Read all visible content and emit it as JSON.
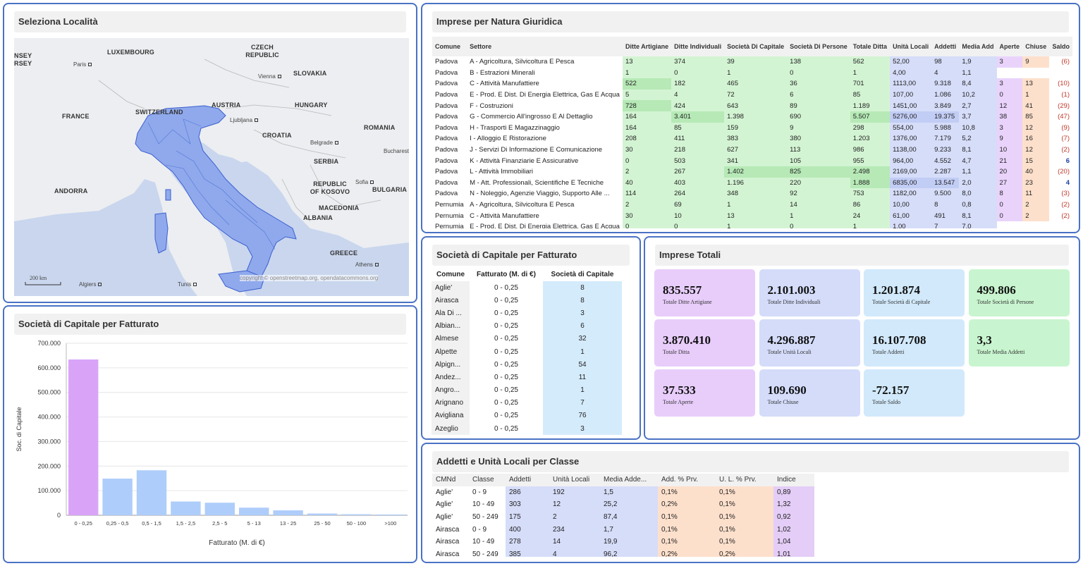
{
  "map_panel": {
    "title": "Seleziona Località",
    "labels": {
      "countries": [
        "LUXEMBOURG",
        "CZECH REPUBLIC",
        "SLOVAKIA",
        "AUSTRIA",
        "HUNGARY",
        "FRANCE",
        "SWITZERLAND",
        "ROMANIA",
        "CROATIA",
        "SERBIA",
        "ANDORRA",
        "REPUBLIC OF KOSOVO",
        "BULGARIA",
        "MACEDONIA",
        "ALBANIA",
        "GREECE",
        "NSEY",
        "RSEY"
      ],
      "cities": [
        "Paris",
        "Vienna",
        "Ljubljana",
        "Belgrade",
        "Bucharest",
        "Sofia",
        "Athens",
        "Algiers",
        "Tunis"
      ],
      "scale": "200 km",
      "copyright": "copyright © openstreetmap.org, opendatacommons.org"
    }
  },
  "natura_panel": {
    "title": "Imprese per Natura Giuridica",
    "headers": [
      "Comune",
      "Settore",
      "Ditte Artigiane",
      "Ditte Individuali",
      "Società Di Capitale",
      "Società Di Persone",
      "Totale Ditta",
      "Unità Locali",
      "Addetti",
      "Media Add",
      "Aperte",
      "Chiuse",
      "Saldo"
    ],
    "rows": [
      [
        "Padova",
        "A - Agricoltura, Silvicoltura E Pesca",
        "13",
        "374",
        "39",
        "138",
        "562",
        "52,00",
        "98",
        "1,9",
        "3",
        "9",
        "(6)"
      ],
      [
        "Padova",
        "B - Estrazioni Minerali",
        "1",
        "0",
        "1",
        "0",
        "1",
        "4,00",
        "4",
        "1,1",
        "",
        "",
        ""
      ],
      [
        "Padova",
        "C - Attività Manufattiere",
        "522",
        "182",
        "465",
        "36",
        "701",
        "1113,00",
        "9.318",
        "8,4",
        "3",
        "13",
        "(10)"
      ],
      [
        "Padova",
        "E - Prod. E Dist. Di Energia Elettrica, Gas E Acqua",
        "5",
        "4",
        "72",
        "6",
        "85",
        "107,00",
        "1.086",
        "10,2",
        "0",
        "1",
        "(1)"
      ],
      [
        "Padova",
        "F - Costruzioni",
        "728",
        "424",
        "643",
        "89",
        "1.189",
        "1451,00",
        "3.849",
        "2,7",
        "12",
        "41",
        "(29)"
      ],
      [
        "Padova",
        "G - Commercio All'ingrosso E Al Dettaglio",
        "164",
        "3.401",
        "1.398",
        "690",
        "5.507",
        "5276,00",
        "19.375",
        "3,7",
        "38",
        "85",
        "(47)"
      ],
      [
        "Padova",
        "H - Trasporti E Magazzinaggio",
        "164",
        "85",
        "159",
        "9",
        "298",
        "554,00",
        "5.988",
        "10,8",
        "3",
        "12",
        "(9)"
      ],
      [
        "Padova",
        "I - Alloggio E Ristorazione",
        "208",
        "411",
        "383",
        "380",
        "1.203",
        "1376,00",
        "7.179",
        "5,2",
        "9",
        "16",
        "(7)"
      ],
      [
        "Padova",
        "J - Servizi Di Informazione E Comunicazione",
        "30",
        "218",
        "627",
        "113",
        "986",
        "1138,00",
        "9.233",
        "8,1",
        "10",
        "12",
        "(2)"
      ],
      [
        "Padova",
        "K - Attività Finanziarie E Assicurative",
        "0",
        "503",
        "341",
        "105",
        "955",
        "964,00",
        "4.552",
        "4,7",
        "21",
        "15",
        "6"
      ],
      [
        "Padova",
        "L - Attività Immobiliari",
        "2",
        "267",
        "1.402",
        "825",
        "2.498",
        "2169,00",
        "2.287",
        "1,1",
        "20",
        "40",
        "(20)"
      ],
      [
        "Padova",
        "M - Att. Professionali, Scientifiche E Tecniche",
        "40",
        "403",
        "1.196",
        "220",
        "1.888",
        "6835,00",
        "13.547",
        "2,0",
        "27",
        "23",
        "4"
      ],
      [
        "Padova",
        "N - Noleggio, Agenzie Viaggio, Supporto Alle ...",
        "114",
        "264",
        "348",
        "92",
        "753",
        "1182,00",
        "9.500",
        "8,0",
        "8",
        "11",
        "(3)"
      ],
      [
        "Pernumia",
        "A - Agricoltura, Silvicoltura E Pesca",
        "2",
        "69",
        "1",
        "14",
        "86",
        "10,00",
        "8",
        "0,8",
        "0",
        "2",
        "(2)"
      ],
      [
        "Pernumia",
        "C - Attività Manufattiere",
        "30",
        "10",
        "13",
        "1",
        "24",
        "61,00",
        "491",
        "8,1",
        "0",
        "2",
        "(2)"
      ],
      [
        "Pernumia",
        "E - Prod. E Dist. Di Energia Elettrica, Gas E Acqua",
        "0",
        "0",
        "1",
        "0",
        "1",
        "1,00",
        "7",
        "7,0",
        "",
        "",
        ""
      ]
    ]
  },
  "bar_panel": {
    "title": "Società di Capitale per Fatturato",
    "chart_data": {
      "type": "bar",
      "categories": [
        "0 - 0,25",
        "0,25 - 0,5",
        "0,5 - 1,5",
        "1,5 - 2,5",
        "2,5 - 5",
        "5 - 13",
        "13 - 25",
        "25 - 50",
        "50 - 100",
        ">100"
      ],
      "values": [
        634000,
        149000,
        183000,
        56000,
        51000,
        31000,
        20000,
        7000,
        4000,
        3000
      ],
      "xlabel": "Fatturato (M. di €)",
      "ylabel": "Soc. di Capitale",
      "ylim": [
        0,
        700000
      ],
      "yticks": [
        "0",
        "100.000",
        "200.000",
        "300.000",
        "400.000",
        "500.000",
        "600.000",
        "700.000"
      ],
      "colors": [
        "#d9a4f7",
        "#aecdfa"
      ]
    }
  },
  "fatturato_panel": {
    "title": "Società di Capitale per Fatturato",
    "headers": [
      "Comune",
      "Fatturato (M. di €)",
      "Società di Capitale"
    ],
    "rows": [
      [
        "Aglie'",
        "0 - 0,25",
        "8"
      ],
      [
        "Airasca",
        "0 - 0,25",
        "8"
      ],
      [
        "Ala Di ...",
        "0 - 0,25",
        "3"
      ],
      [
        "Albian...",
        "0 - 0,25",
        "6"
      ],
      [
        "Almese",
        "0 - 0,25",
        "32"
      ],
      [
        "Alpette",
        "0 - 0,25",
        "1"
      ],
      [
        "Alpign...",
        "0 - 0,25",
        "54"
      ],
      [
        "Andez...",
        "0 - 0,25",
        "11"
      ],
      [
        "Angro...",
        "0 - 0,25",
        "1"
      ],
      [
        "Arignano",
        "0 - 0,25",
        "7"
      ],
      [
        "Avigliana",
        "0 - 0,25",
        "76"
      ],
      [
        "Azeglio",
        "0 - 0,25",
        "3"
      ]
    ]
  },
  "kpi_panel": {
    "title": "Imprese Totali",
    "cards": [
      {
        "value": "835.557",
        "label": "Totale Ditte Artigiane",
        "color": "#e8cdfb"
      },
      {
        "value": "2.101.003",
        "label": "Totale Ditte Individuali",
        "color": "#d4dcfa"
      },
      {
        "value": "1.201.874",
        "label": "Totale Società di Capitale",
        "color": "#d1e9fb"
      },
      {
        "value": "499.806",
        "label": "Totale Società di Persone",
        "color": "#c8f5cf"
      },
      {
        "value": "3.870.410",
        "label": "Totale Ditta",
        "color": "#e8cdfb"
      },
      {
        "value": "4.296.887",
        "label": "Totale Unità Locali",
        "color": "#d4dcfa"
      },
      {
        "value": "16.107.708",
        "label": "Totale Addetti",
        "color": "#d1e9fb"
      },
      {
        "value": "3,3",
        "label": "Totale Media Addetti",
        "color": "#c8f5cf"
      },
      {
        "value": "37.533",
        "label": "Totale Aperte",
        "color": "#e8cdfb"
      },
      {
        "value": "109.690",
        "label": "Totale Chiuse",
        "color": "#d4dcfa"
      },
      {
        "value": "-72.157",
        "label": "Totale Saldo",
        "color": "#d1e9fb"
      }
    ]
  },
  "addetti_panel": {
    "title": "Addetti e Unità Locali per Classe",
    "headers": [
      "CMNd",
      "Classe",
      "Addetti",
      "Unità Locali",
      "Media Adde...",
      "Add. % Prv.",
      "U. L. % Prv.",
      "Indice"
    ],
    "rows": [
      [
        "Aglie'",
        "0 - 9",
        "286",
        "192",
        "1,5",
        "0,1%",
        "0,1%",
        "0,89"
      ],
      [
        "Aglie'",
        "10 - 49",
        "303",
        "12",
        "25,2",
        "0,2%",
        "0,1%",
        "1,32"
      ],
      [
        "Aglie'",
        "50 - 249",
        "175",
        "2",
        "87,4",
        "0,1%",
        "0,1%",
        "0,92"
      ],
      [
        "Airasca",
        "0 - 9",
        "400",
        "234",
        "1,7",
        "0,1%",
        "0,1%",
        "1,02"
      ],
      [
        "Airasca",
        "10 - 49",
        "278",
        "14",
        "19,9",
        "0,1%",
        "0,1%",
        "1,04"
      ],
      [
        "Airasca",
        "50 - 249",
        "385",
        "4",
        "96,2",
        "0,2%",
        "0,2%",
        "1,01"
      ]
    ]
  }
}
